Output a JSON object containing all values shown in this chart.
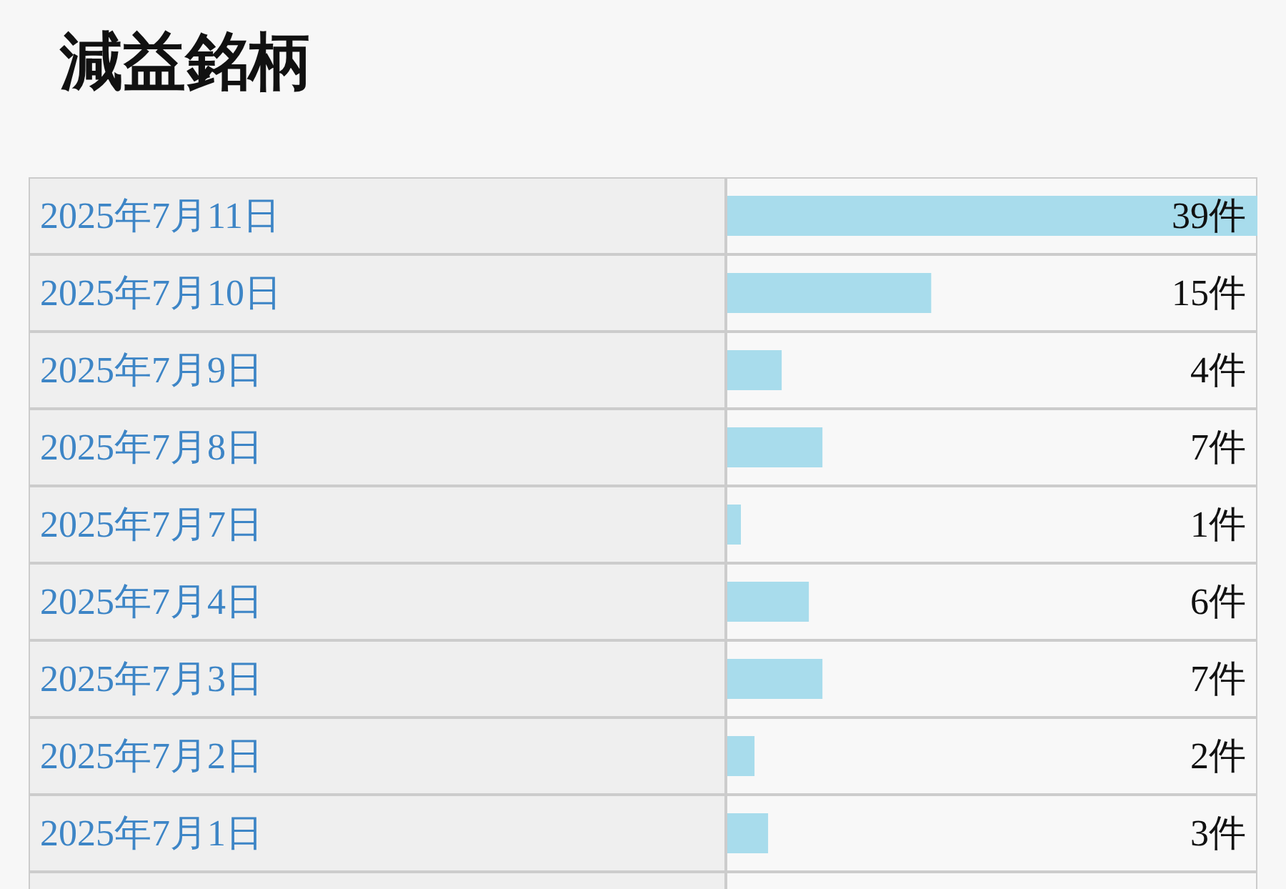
{
  "chart_data": {
    "type": "bar",
    "orientation": "horizontal",
    "title": "減益銘柄",
    "categories": [
      "2025年7月11日",
      "2025年7月10日",
      "2025年7月9日",
      "2025年7月8日",
      "2025年7月7日",
      "2025年7月4日",
      "2025年7月3日",
      "2025年7月2日",
      "2025年7月1日"
    ],
    "values": [
      39,
      15,
      4,
      7,
      1,
      6,
      7,
      2,
      3
    ],
    "value_labels": [
      "39件",
      "15件",
      "4件",
      "7件",
      "1件",
      "6件",
      "7件",
      "2件",
      "3件"
    ],
    "color": "#a8dcec"
  }
}
